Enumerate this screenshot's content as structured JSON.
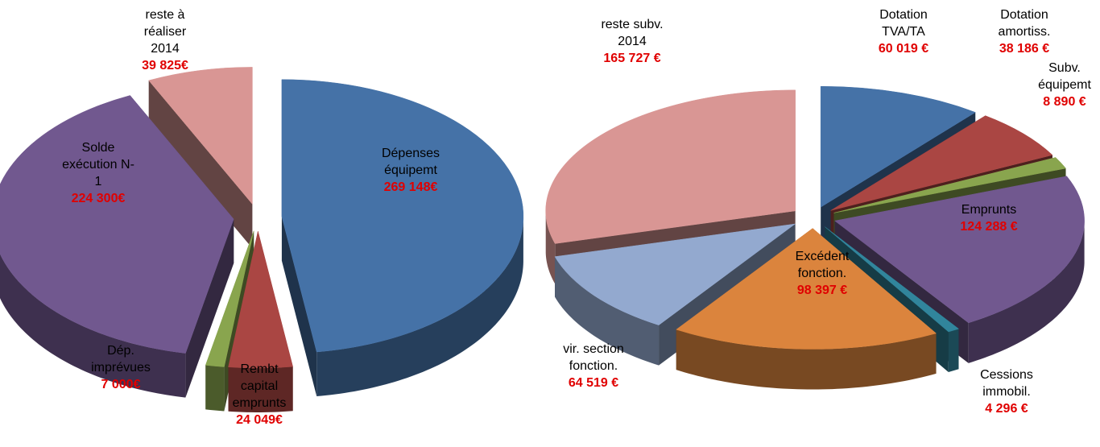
{
  "chart_data": [
    {
      "type": "pie",
      "categories": [
        "Dépenses équipemt",
        "Rembt capital emprunts",
        "Dép. imprévues",
        "Solde exécution N-1",
        "reste à réaliser 2014"
      ],
      "values": [
        269148,
        24049,
        7000,
        224300,
        39825
      ],
      "value_labels": [
        "269 148€",
        "24 049€",
        "7 000€",
        "224 300€",
        "39 825€"
      ],
      "colors": [
        "#4572a7",
        "#aa4643",
        "#89a54e",
        "#71588f",
        "#d99694"
      ]
    },
    {
      "type": "pie",
      "categories": [
        "Dotation TVA/TA",
        "Dotation amortiss.",
        "Subv. équipemt",
        "Emprunts",
        "Cessions immobil.",
        "Excédent fonction.",
        "vir. section fonction.",
        "reste subv. 2014"
      ],
      "values": [
        60019,
        38186,
        8890,
        124288,
        4296,
        98397,
        64519,
        165727
      ],
      "value_labels": [
        "60 019 €",
        "38 186 €",
        "8 890 €",
        "124 288 €",
        "4 296 €",
        "98 397 €",
        "64 519 €",
        "165 727 €"
      ],
      "colors": [
        "#4572a7",
        "#aa4643",
        "#89a54e",
        "#71588f",
        "#31859c",
        "#db843d",
        "#93a9cf",
        "#d99694"
      ]
    }
  ]
}
